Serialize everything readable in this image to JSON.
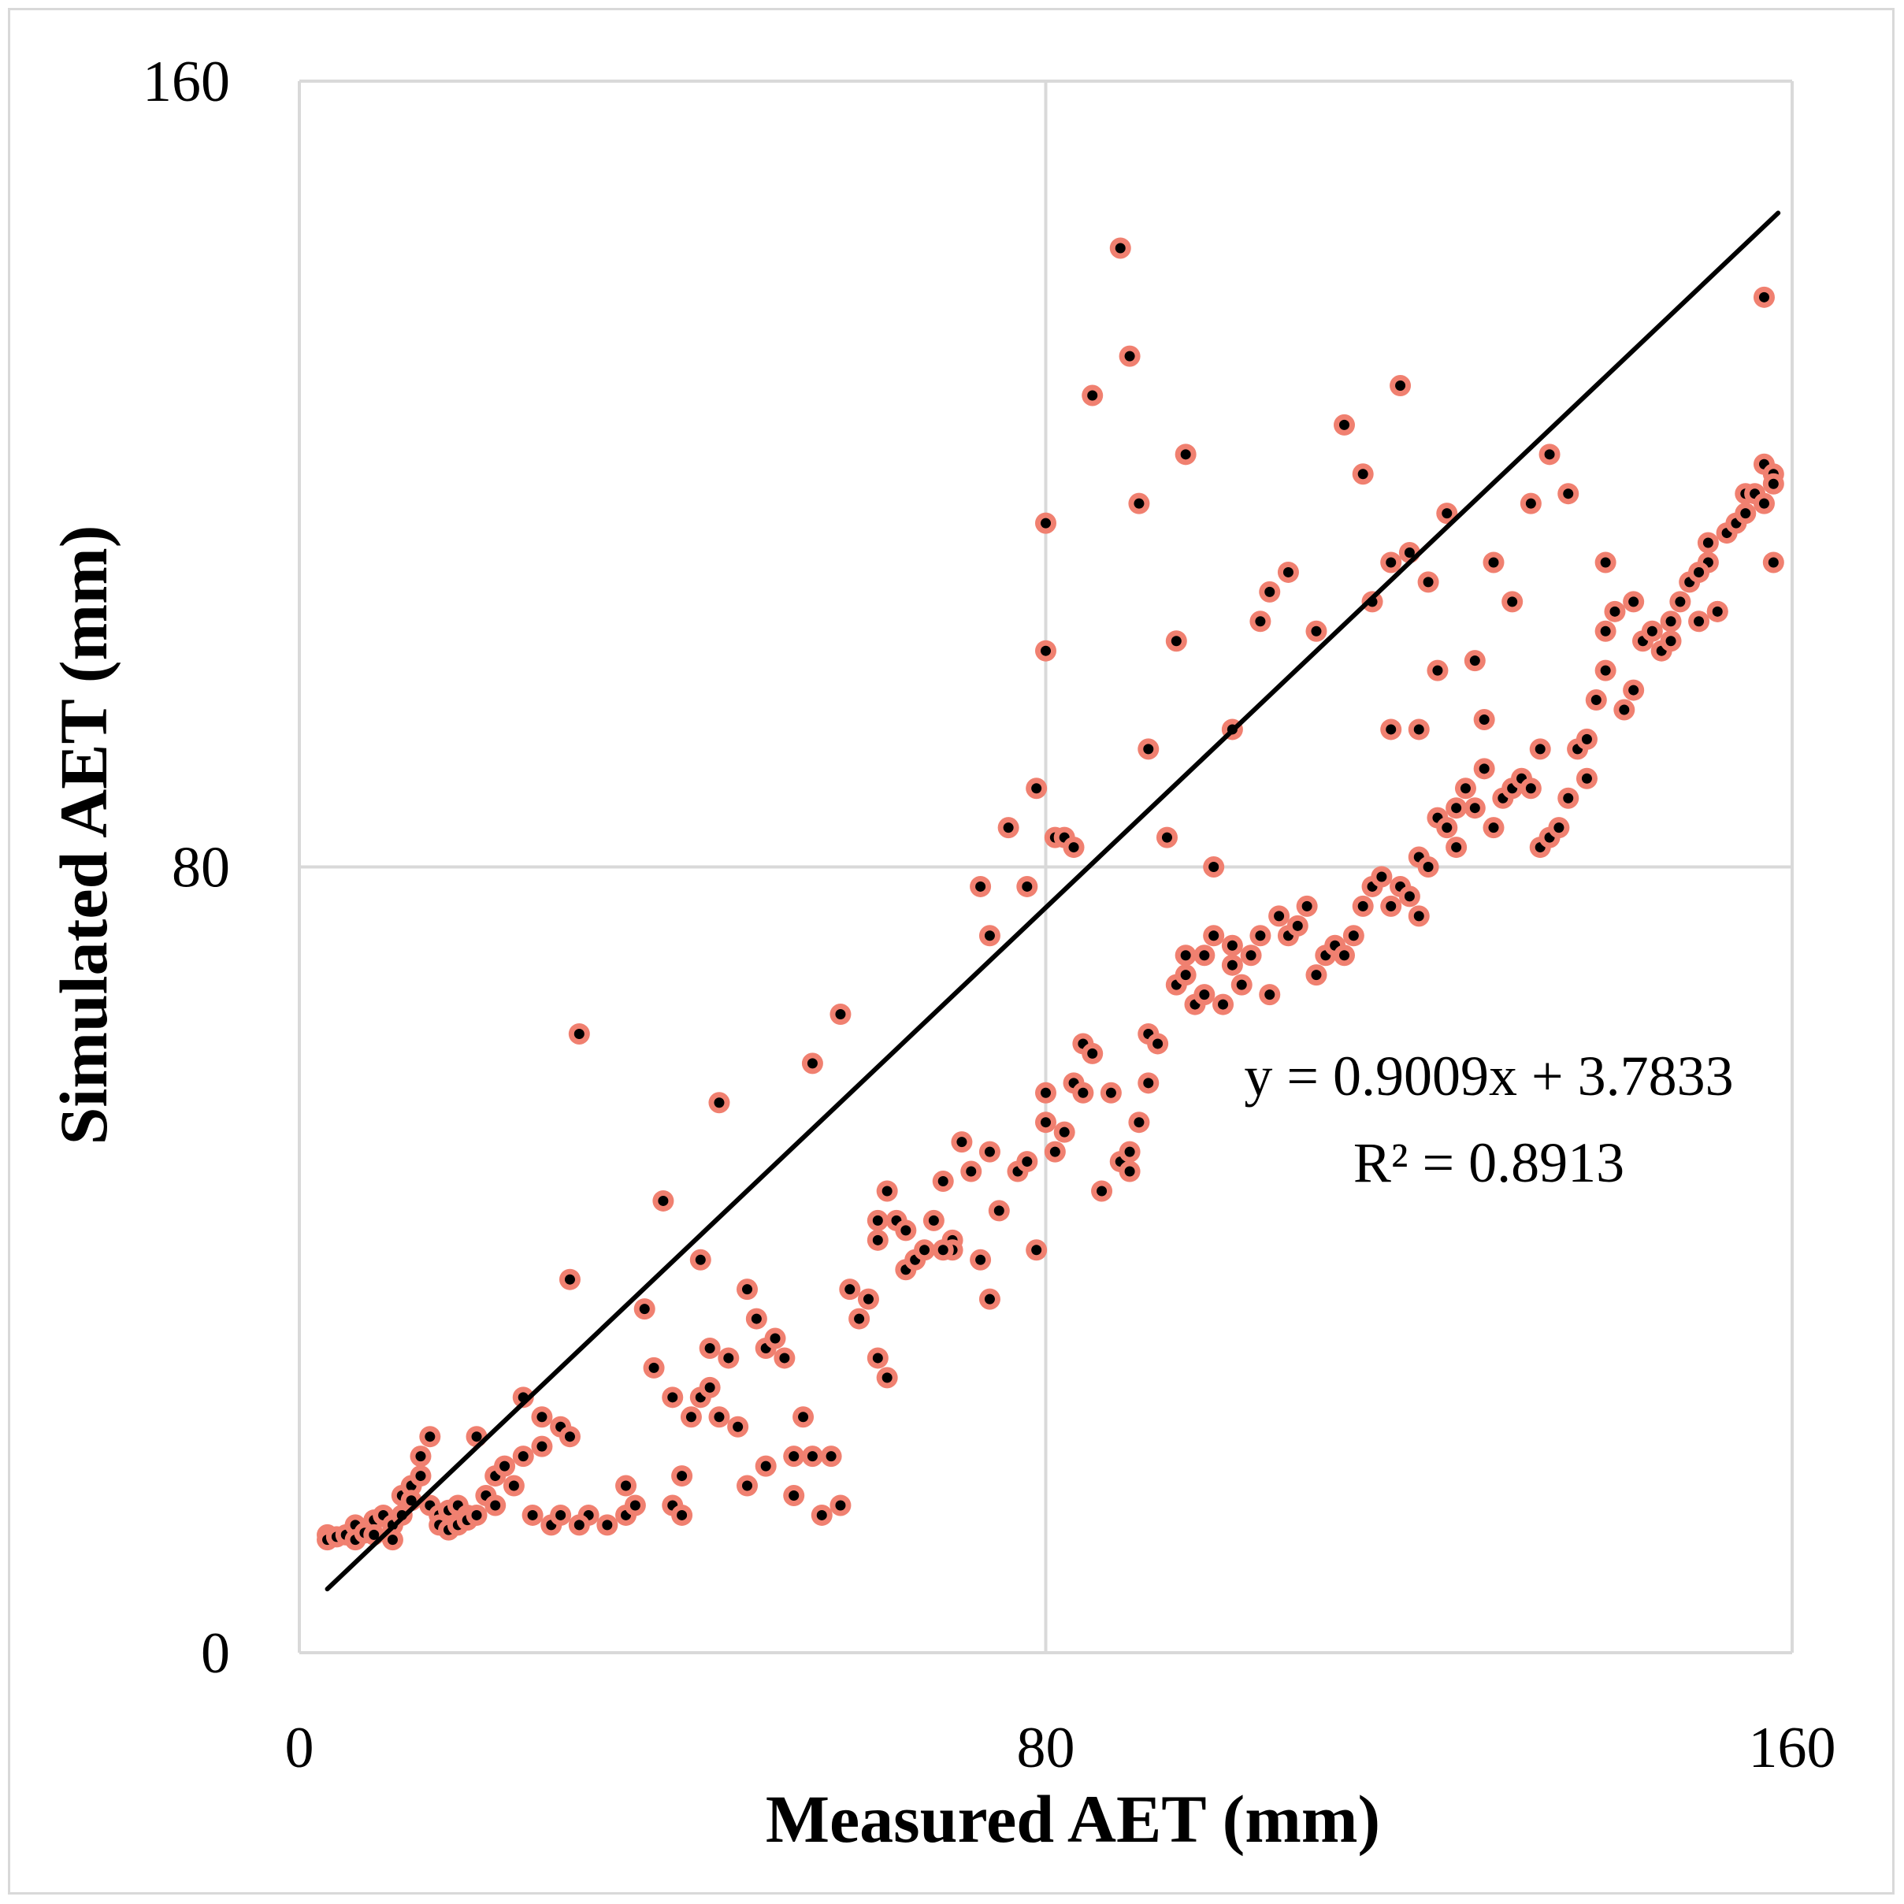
{
  "chart_data": {
    "type": "scatter",
    "title": "",
    "xlabel": "Measured AET (mm)",
    "ylabel": "Simulated AET (mm)",
    "xlim": [
      0,
      160
    ],
    "ylim": [
      0,
      160
    ],
    "x_ticks": [
      "0",
      "80",
      "160"
    ],
    "y_ticks": [
      "0",
      "80",
      "160"
    ],
    "grid": true,
    "legend": "none",
    "colors": {
      "marker_fill": "#000000",
      "marker_edge": "#f08070",
      "trendline": "#000000",
      "grid": "#d9d9d9"
    },
    "trendline": {
      "slope": 0.9009,
      "intercept": 3.7833,
      "x_range": [
        3,
        158.5
      ]
    },
    "annotations": {
      "equation": "y = 0.9009x + 3.7833",
      "r_squared": "R² = 0.8913"
    },
    "series": [
      {
        "name": "AET",
        "points": [
          [
            3,
            12
          ],
          [
            3,
            11.5
          ],
          [
            4,
            11.8
          ],
          [
            5,
            12
          ],
          [
            6,
            13
          ],
          [
            6,
            11.5
          ],
          [
            7,
            12.2
          ],
          [
            8,
            13.5
          ],
          [
            8,
            12
          ],
          [
            9,
            14
          ],
          [
            10,
            13
          ],
          [
            10,
            11.5
          ],
          [
            11,
            16
          ],
          [
            11,
            14
          ],
          [
            12,
            17
          ],
          [
            12,
            15.5
          ],
          [
            13,
            18
          ],
          [
            13,
            20
          ],
          [
            14,
            15
          ],
          [
            14,
            22
          ],
          [
            15,
            14
          ],
          [
            15,
            13
          ],
          [
            16,
            12.5
          ],
          [
            16,
            14.5
          ],
          [
            17,
            13
          ],
          [
            17,
            15
          ],
          [
            18,
            14
          ],
          [
            18,
            13.5
          ],
          [
            19,
            22
          ],
          [
            19,
            14
          ],
          [
            20,
            16
          ],
          [
            21,
            18
          ],
          [
            21,
            15
          ],
          [
            22,
            19
          ],
          [
            23,
            17
          ],
          [
            24,
            20
          ],
          [
            24,
            26
          ],
          [
            25,
            14
          ],
          [
            26,
            24
          ],
          [
            26,
            21
          ],
          [
            27,
            13
          ],
          [
            28,
            23
          ],
          [
            29,
            38
          ],
          [
            29,
            22
          ],
          [
            31,
            14
          ],
          [
            33,
            13
          ],
          [
            35,
            14
          ],
          [
            37,
            35
          ],
          [
            38,
            29
          ],
          [
            39,
            46
          ],
          [
            40,
            15
          ],
          [
            40,
            26
          ],
          [
            41,
            18
          ],
          [
            41,
            14
          ],
          [
            42,
            24
          ],
          [
            43,
            40
          ],
          [
            43,
            26
          ],
          [
            44,
            31
          ],
          [
            44,
            27
          ],
          [
            45,
            56
          ],
          [
            45,
            24
          ],
          [
            46,
            30
          ],
          [
            47,
            23
          ],
          [
            48,
            37
          ],
          [
            48,
            17
          ],
          [
            49,
            34
          ],
          [
            50,
            19
          ],
          [
            50,
            31
          ],
          [
            51,
            32
          ],
          [
            52,
            30
          ],
          [
            53,
            20
          ],
          [
            53,
            16
          ],
          [
            54,
            24
          ],
          [
            55,
            20
          ],
          [
            56,
            14
          ],
          [
            57,
            20
          ],
          [
            58,
            15
          ],
          [
            59,
            37
          ],
          [
            60,
            34
          ],
          [
            61,
            36
          ],
          [
            62,
            42
          ],
          [
            62,
            30
          ],
          [
            63,
            28
          ],
          [
            64,
            44
          ],
          [
            65,
            39
          ],
          [
            66,
            40
          ],
          [
            67,
            41
          ],
          [
            68,
            44
          ],
          [
            69,
            48
          ],
          [
            70,
            42
          ],
          [
            70,
            41
          ],
          [
            72,
            49
          ],
          [
            73,
            40
          ],
          [
            74,
            36
          ],
          [
            74,
            51
          ],
          [
            75,
            45
          ],
          [
            77,
            49
          ],
          [
            78,
            50
          ],
          [
            79,
            41
          ],
          [
            80,
            57
          ],
          [
            80,
            54
          ],
          [
            81,
            51
          ],
          [
            82,
            53
          ],
          [
            83,
            58
          ],
          [
            84,
            57
          ],
          [
            84,
            62
          ],
          [
            85,
            61
          ],
          [
            86,
            47
          ],
          [
            87,
            57
          ],
          [
            88,
            50
          ],
          [
            89,
            51
          ],
          [
            89,
            49
          ],
          [
            90,
            54
          ],
          [
            91,
            58
          ],
          [
            91,
            63
          ],
          [
            92,
            62
          ],
          [
            94,
            68
          ],
          [
            95,
            71
          ],
          [
            95,
            69
          ],
          [
            96,
            66
          ],
          [
            97,
            71
          ],
          [
            97,
            67
          ],
          [
            98,
            73
          ],
          [
            99,
            66
          ],
          [
            100,
            70
          ],
          [
            100,
            72
          ],
          [
            101,
            68
          ],
          [
            102,
            71
          ],
          [
            103,
            73
          ],
          [
            104,
            67
          ],
          [
            105,
            75
          ],
          [
            106,
            73
          ],
          [
            107,
            74
          ],
          [
            108,
            76
          ],
          [
            109,
            69
          ],
          [
            110,
            71
          ],
          [
            111,
            72
          ],
          [
            112,
            71
          ],
          [
            113,
            73
          ],
          [
            114,
            76
          ],
          [
            115,
            78
          ],
          [
            116,
            79
          ],
          [
            117,
            76
          ],
          [
            117,
            94
          ],
          [
            118,
            78
          ],
          [
            119,
            77
          ],
          [
            120,
            75
          ],
          [
            120,
            81
          ],
          [
            121,
            80
          ],
          [
            122,
            85
          ],
          [
            123,
            84
          ],
          [
            124,
            82
          ],
          [
            124,
            86
          ],
          [
            125,
            88
          ],
          [
            126,
            86
          ],
          [
            127,
            90
          ],
          [
            127,
            95
          ],
          [
            128,
            84
          ],
          [
            129,
            87
          ],
          [
            130,
            88
          ],
          [
            131,
            89
          ],
          [
            132,
            88
          ],
          [
            133,
            92
          ],
          [
            133,
            82
          ],
          [
            134,
            83
          ],
          [
            135,
            84
          ],
          [
            136,
            87
          ],
          [
            137,
            92
          ],
          [
            138,
            89
          ],
          [
            139,
            97
          ],
          [
            140,
            100
          ],
          [
            140,
            104
          ],
          [
            141,
            106
          ],
          [
            142,
            96
          ],
          [
            143,
            98
          ],
          [
            144,
            103
          ],
          [
            145,
            104
          ],
          [
            146,
            102
          ],
          [
            147,
            105
          ],
          [
            148,
            107
          ],
          [
            149,
            109
          ],
          [
            150,
            105
          ],
          [
            151,
            111
          ],
          [
            151,
            113
          ],
          [
            152,
            106
          ],
          [
            153,
            114
          ],
          [
            154,
            115
          ],
          [
            155,
            116
          ],
          [
            155,
            118
          ],
          [
            156,
            118
          ],
          [
            157,
            117
          ],
          [
            157,
            121
          ],
          [
            158,
            120
          ],
          [
            158,
            119
          ],
          [
            30,
            63
          ],
          [
            35,
            17
          ],
          [
            36,
            15
          ],
          [
            28,
            14
          ],
          [
            30,
            13
          ],
          [
            55,
            60
          ],
          [
            58,
            65
          ],
          [
            62,
            44
          ],
          [
            63,
            47
          ],
          [
            65,
            43
          ],
          [
            69,
            41
          ],
          [
            71,
            52
          ],
          [
            73,
            78
          ],
          [
            74,
            73
          ],
          [
            76,
            84
          ],
          [
            78,
            78
          ],
          [
            79,
            88
          ],
          [
            80,
            115
          ],
          [
            80,
            102
          ],
          [
            81,
            83
          ],
          [
            82,
            83
          ],
          [
            83,
            82
          ],
          [
            85,
            128
          ],
          [
            88,
            143
          ],
          [
            89,
            132
          ],
          [
            90,
            117
          ],
          [
            91,
            92
          ],
          [
            93,
            83
          ],
          [
            94,
            103
          ],
          [
            95,
            122
          ],
          [
            98,
            80
          ],
          [
            100,
            94
          ],
          [
            103,
            105
          ],
          [
            104,
            108
          ],
          [
            106,
            110
          ],
          [
            109,
            104
          ],
          [
            112,
            125
          ],
          [
            114,
            120
          ],
          [
            115,
            107
          ],
          [
            117,
            111
          ],
          [
            118,
            129
          ],
          [
            119,
            112
          ],
          [
            120,
            94
          ],
          [
            121,
            109
          ],
          [
            122,
            100
          ],
          [
            123,
            116
          ],
          [
            126,
            101
          ],
          [
            128,
            111
          ],
          [
            130,
            107
          ],
          [
            132,
            117
          ],
          [
            134,
            122
          ],
          [
            136,
            118
          ],
          [
            138,
            93
          ],
          [
            140,
            111
          ],
          [
            143,
            107
          ],
          [
            147,
            103
          ],
          [
            150,
            110
          ],
          [
            152,
            106
          ],
          [
            157,
            138
          ],
          [
            158,
            111
          ]
        ]
      }
    ]
  }
}
